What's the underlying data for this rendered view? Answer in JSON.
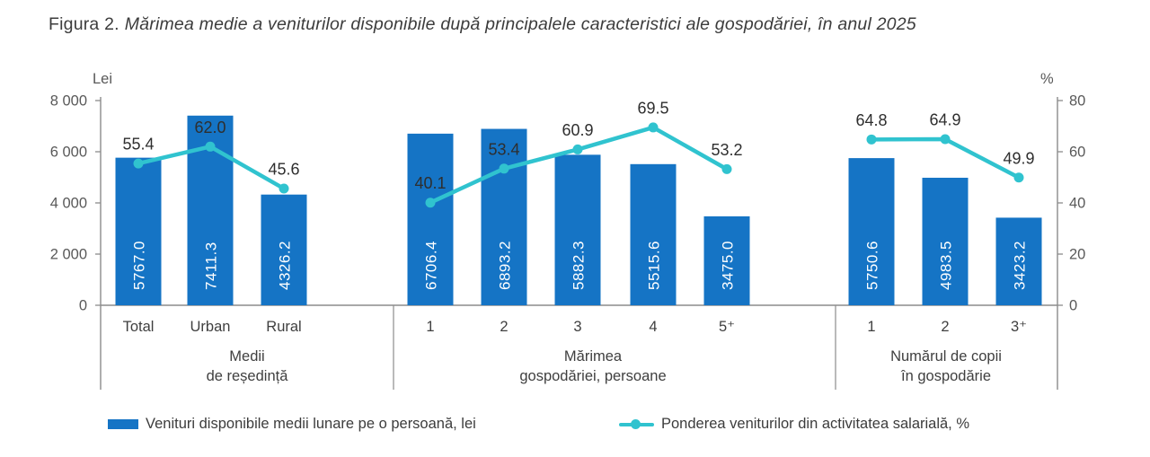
{
  "figure": {
    "title_prefix": "Figura 2.",
    "title_text": "Mărimea medie a veniturilor disponibile după principalele caracteristici ale gospodăriei, în anul 2025"
  },
  "chart_data": {
    "type": "bar",
    "left_axis": {
      "label": "Lei",
      "lim": [
        0,
        8000
      ],
      "ticks": [
        "8 000",
        "6 000",
        "4 000",
        "2 000",
        "0"
      ]
    },
    "right_axis": {
      "label": "%",
      "lim": [
        0,
        80
      ],
      "ticks": [
        "80",
        "60",
        "40",
        "20",
        "0"
      ]
    },
    "grid": "off",
    "legend_position": "bottom",
    "series": [
      {
        "name": "Venituri disponibile medii lunare pe o persoană, lei",
        "type": "bar",
        "color": "#1574c5"
      },
      {
        "name": "Ponderea veniturilor din activitatea salarială, %",
        "type": "line",
        "color": "#30c3cf"
      }
    ],
    "groups": [
      {
        "label_lines": [
          "Medii",
          "de reședință"
        ],
        "categories": [
          "Total",
          "Urban",
          "Rural"
        ],
        "bar_values": [
          5767.0,
          7411.3,
          4326.2
        ],
        "bar_labels": [
          "5767.0",
          "7411.3",
          "4326.2"
        ],
        "line_values": [
          55.4,
          62.0,
          45.6
        ],
        "line_labels": [
          "55.4",
          "62.0",
          "45.6"
        ]
      },
      {
        "label_lines": [
          "Mărimea",
          "gospodăriei, persoane"
        ],
        "categories": [
          "1",
          "2",
          "3",
          "4",
          "5⁺"
        ],
        "bar_values": [
          6706.4,
          6893.2,
          5882.3,
          5515.6,
          3475.0
        ],
        "bar_labels": [
          "6706.4",
          "6893.2",
          "5882.3",
          "5515.6",
          "3475.0"
        ],
        "line_values": [
          40.1,
          53.4,
          60.9,
          69.5,
          53.2
        ],
        "line_labels": [
          "40.1",
          "53.4",
          "60.9",
          "69.5",
          "53.2"
        ]
      },
      {
        "label_lines": [
          "Numărul de copii",
          "în gospodărie"
        ],
        "categories": [
          "1",
          "2",
          "3⁺"
        ],
        "bar_values": [
          5750.6,
          4983.5,
          3423.2
        ],
        "bar_labels": [
          "5750.6",
          "4983.5",
          "3423.2"
        ],
        "line_values": [
          64.8,
          64.9,
          49.9
        ],
        "line_labels": [
          "64.8",
          "64.9",
          "49.9"
        ]
      }
    ]
  }
}
